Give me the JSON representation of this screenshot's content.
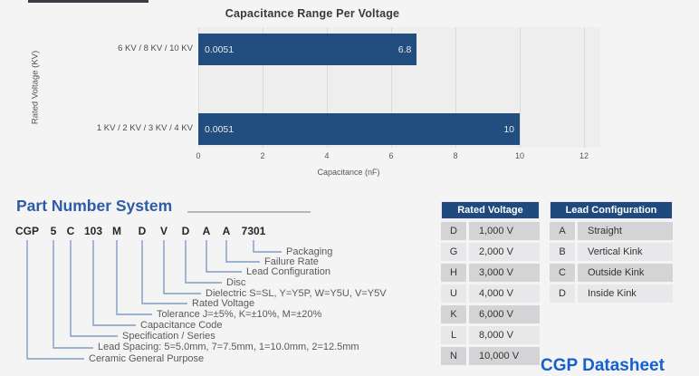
{
  "chart_data": {
    "type": "bar",
    "orientation": "horizontal",
    "title": "Capacitance Range Per Voltage",
    "categories": [
      "6 KV / 8 KV / 10 KV",
      "1 KV / 2 KV / 3 KV / 4 KV"
    ],
    "values": [
      6.8,
      10
    ],
    "range_start_labels": [
      "0.0051",
      "0.0051"
    ],
    "value_labels": [
      "6.8",
      "10"
    ],
    "xlabel": "Capacitance (nF)",
    "ylabel": "Rated Voltage  (KV)",
    "xlim": [
      0,
      12
    ],
    "xticks": [
      "0",
      "2",
      "4",
      "6",
      "8",
      "10",
      "12"
    ],
    "bar_color": "#214e7e",
    "grid": true,
    "legend": "none"
  },
  "part_number_system": {
    "title": "Part Number System",
    "fields": [
      {
        "code": "CGP",
        "label": "Ceramic General Purpose"
      },
      {
        "code": "5",
        "label": "Lead Spacing: 5=5.0mm, 7=7.5mm, 1=10.0mm, 2=12.5mm"
      },
      {
        "code": "C",
        "label": "Specification / Series"
      },
      {
        "code": "103",
        "label": "Capacitance Code"
      },
      {
        "code": "M",
        "label": "Tolerance J=±5%, K=±10%, M=±20%"
      },
      {
        "code": "D",
        "label": "Rated Voltage"
      },
      {
        "code": "V",
        "label": "Dielectric S=SL, Y=Y5P, W=Y5U, V=Y5V"
      },
      {
        "code": "D",
        "label": "Disc"
      },
      {
        "code": "A",
        "label": "Lead Configuration"
      },
      {
        "code": "A",
        "label": "Failure Rate"
      },
      {
        "code": "7301",
        "label": "Packaging"
      }
    ]
  },
  "rated_voltage_table": {
    "title": "Rated Voltage",
    "rows": [
      [
        "D",
        "1,000 V"
      ],
      [
        "G",
        "2,000 V"
      ],
      [
        "H",
        "3,000 V"
      ],
      [
        "U",
        "4,000 V"
      ],
      [
        "K",
        "6,000 V"
      ],
      [
        "L",
        "8,000 V"
      ],
      [
        "N",
        "10,000 V"
      ]
    ]
  },
  "lead_configuration_table": {
    "title": "Lead Configuration",
    "rows": [
      [
        "A",
        "Straight"
      ],
      [
        "B",
        "Vertical Kink"
      ],
      [
        "C",
        "Outside Kink"
      ],
      [
        "D",
        "Inside Kink"
      ]
    ]
  },
  "footer": {
    "datasheet_label": "CGP Datasheet"
  },
  "colors": {
    "accent_navy": "#1f4a7e",
    "bar_blue": "#214e7e",
    "heading_blue": "#2d5ba6",
    "link_blue": "#1560cf",
    "leader_line": "#7f9dc4",
    "row_dark": "#d4d4d6",
    "row_light": "#e8e8ea"
  }
}
